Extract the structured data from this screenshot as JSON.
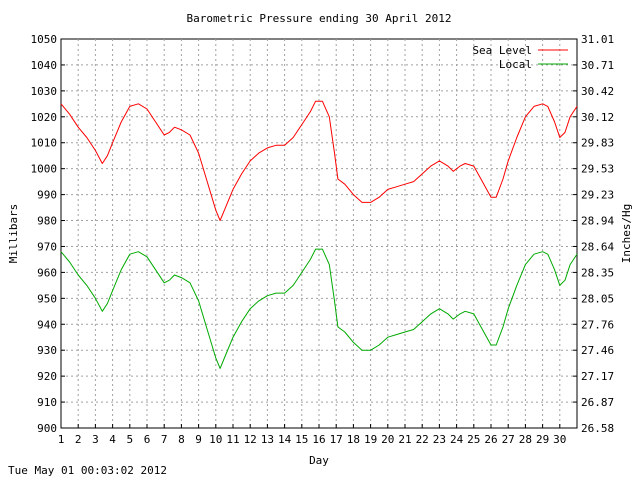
{
  "chart_data": {
    "type": "line",
    "title": "Barometric Pressure ending 30 April 2012",
    "xlabel": "Day",
    "ylabel": "Millibars",
    "y2label": "Inches/Hg",
    "xlim": [
      1,
      31
    ],
    "ylim": [
      900,
      1050
    ],
    "x_ticks": [
      1,
      2,
      3,
      4,
      5,
      6,
      7,
      8,
      9,
      10,
      11,
      12,
      13,
      14,
      15,
      16,
      17,
      18,
      19,
      20,
      21,
      22,
      23,
      24,
      25,
      26,
      27,
      28,
      29,
      30
    ],
    "y_ticks": [
      900,
      910,
      920,
      930,
      940,
      950,
      960,
      970,
      980,
      990,
      1000,
      1010,
      1020,
      1030,
      1040,
      1050
    ],
    "y2_ticks": [
      "26.58",
      "26.87",
      "27.17",
      "27.46",
      "27.76",
      "28.05",
      "28.35",
      "28.64",
      "28.94",
      "29.23",
      "29.53",
      "29.83",
      "30.12",
      "30.42",
      "30.71",
      "31.01"
    ],
    "grid": true,
    "legend_position": "top-right",
    "series": [
      {
        "name": "Sea Level",
        "color": "#ff0000",
        "points": [
          [
            1.0,
            1025
          ],
          [
            1.5,
            1021
          ],
          [
            2.0,
            1016
          ],
          [
            2.5,
            1012
          ],
          [
            3.0,
            1007
          ],
          [
            3.4,
            1002
          ],
          [
            3.7,
            1005
          ],
          [
            4.0,
            1010
          ],
          [
            4.5,
            1018
          ],
          [
            5.0,
            1024
          ],
          [
            5.5,
            1025
          ],
          [
            6.0,
            1023
          ],
          [
            6.5,
            1018
          ],
          [
            7.0,
            1013
          ],
          [
            7.3,
            1014
          ],
          [
            7.6,
            1016
          ],
          [
            8.0,
            1015
          ],
          [
            8.5,
            1013
          ],
          [
            9.0,
            1006
          ],
          [
            9.5,
            995
          ],
          [
            10.0,
            984
          ],
          [
            10.25,
            980
          ],
          [
            10.5,
            984
          ],
          [
            11.0,
            992
          ],
          [
            11.5,
            998
          ],
          [
            12.0,
            1003
          ],
          [
            12.5,
            1006
          ],
          [
            13.0,
            1008
          ],
          [
            13.5,
            1009
          ],
          [
            14.0,
            1009
          ],
          [
            14.5,
            1012
          ],
          [
            15.0,
            1017
          ],
          [
            15.5,
            1022
          ],
          [
            15.8,
            1026
          ],
          [
            16.2,
            1026
          ],
          [
            16.6,
            1020
          ],
          [
            16.9,
            1006
          ],
          [
            17.1,
            996
          ],
          [
            17.5,
            994
          ],
          [
            18.0,
            990
          ],
          [
            18.5,
            987
          ],
          [
            19.0,
            987
          ],
          [
            19.5,
            989
          ],
          [
            20.0,
            992
          ],
          [
            20.5,
            993
          ],
          [
            21.0,
            994
          ],
          [
            21.5,
            995
          ],
          [
            22.0,
            998
          ],
          [
            22.5,
            1001
          ],
          [
            23.0,
            1003
          ],
          [
            23.5,
            1001
          ],
          [
            23.8,
            999
          ],
          [
            24.2,
            1001
          ],
          [
            24.5,
            1002
          ],
          [
            25.0,
            1001
          ],
          [
            25.5,
            995
          ],
          [
            26.0,
            989
          ],
          [
            26.3,
            989
          ],
          [
            26.7,
            996
          ],
          [
            27.0,
            1003
          ],
          [
            27.5,
            1012
          ],
          [
            28.0,
            1020
          ],
          [
            28.5,
            1024
          ],
          [
            29.0,
            1025
          ],
          [
            29.3,
            1024
          ],
          [
            29.7,
            1018
          ],
          [
            30.0,
            1012
          ],
          [
            30.3,
            1014
          ],
          [
            30.6,
            1020
          ],
          [
            31.0,
            1024
          ]
        ]
      },
      {
        "name": "Local",
        "color": "#00aa00",
        "points": [
          [
            1.0,
            968
          ],
          [
            1.5,
            964
          ],
          [
            2.0,
            959
          ],
          [
            2.5,
            955
          ],
          [
            3.0,
            950
          ],
          [
            3.4,
            945
          ],
          [
            3.7,
            948
          ],
          [
            4.0,
            953
          ],
          [
            4.5,
            961
          ],
          [
            5.0,
            967
          ],
          [
            5.5,
            968
          ],
          [
            6.0,
            966
          ],
          [
            6.5,
            961
          ],
          [
            7.0,
            956
          ],
          [
            7.3,
            957
          ],
          [
            7.6,
            959
          ],
          [
            8.0,
            958
          ],
          [
            8.5,
            956
          ],
          [
            9.0,
            949
          ],
          [
            9.5,
            938
          ],
          [
            10.0,
            927
          ],
          [
            10.25,
            923
          ],
          [
            10.5,
            927
          ],
          [
            11.0,
            935
          ],
          [
            11.5,
            941
          ],
          [
            12.0,
            946
          ],
          [
            12.5,
            949
          ],
          [
            13.0,
            951
          ],
          [
            13.5,
            952
          ],
          [
            14.0,
            952
          ],
          [
            14.5,
            955
          ],
          [
            15.0,
            960
          ],
          [
            15.5,
            965
          ],
          [
            15.8,
            969
          ],
          [
            16.2,
            969
          ],
          [
            16.6,
            963
          ],
          [
            16.9,
            949
          ],
          [
            17.1,
            939
          ],
          [
            17.5,
            937
          ],
          [
            18.0,
            933
          ],
          [
            18.5,
            930
          ],
          [
            19.0,
            930
          ],
          [
            19.5,
            932
          ],
          [
            20.0,
            935
          ],
          [
            20.5,
            936
          ],
          [
            21.0,
            937
          ],
          [
            21.5,
            938
          ],
          [
            22.0,
            941
          ],
          [
            22.5,
            944
          ],
          [
            23.0,
            946
          ],
          [
            23.5,
            944
          ],
          [
            23.8,
            942
          ],
          [
            24.2,
            944
          ],
          [
            24.5,
            945
          ],
          [
            25.0,
            944
          ],
          [
            25.5,
            938
          ],
          [
            26.0,
            932
          ],
          [
            26.3,
            932
          ],
          [
            26.7,
            939
          ],
          [
            27.0,
            946
          ],
          [
            27.5,
            955
          ],
          [
            28.0,
            963
          ],
          [
            28.5,
            967
          ],
          [
            29.0,
            968
          ],
          [
            29.3,
            967
          ],
          [
            29.7,
            961
          ],
          [
            30.0,
            955
          ],
          [
            30.3,
            957
          ],
          [
            30.6,
            963
          ],
          [
            31.0,
            967
          ]
        ]
      }
    ]
  },
  "footer": {
    "timestamp": "Tue May 01 00:03:02 2012"
  }
}
